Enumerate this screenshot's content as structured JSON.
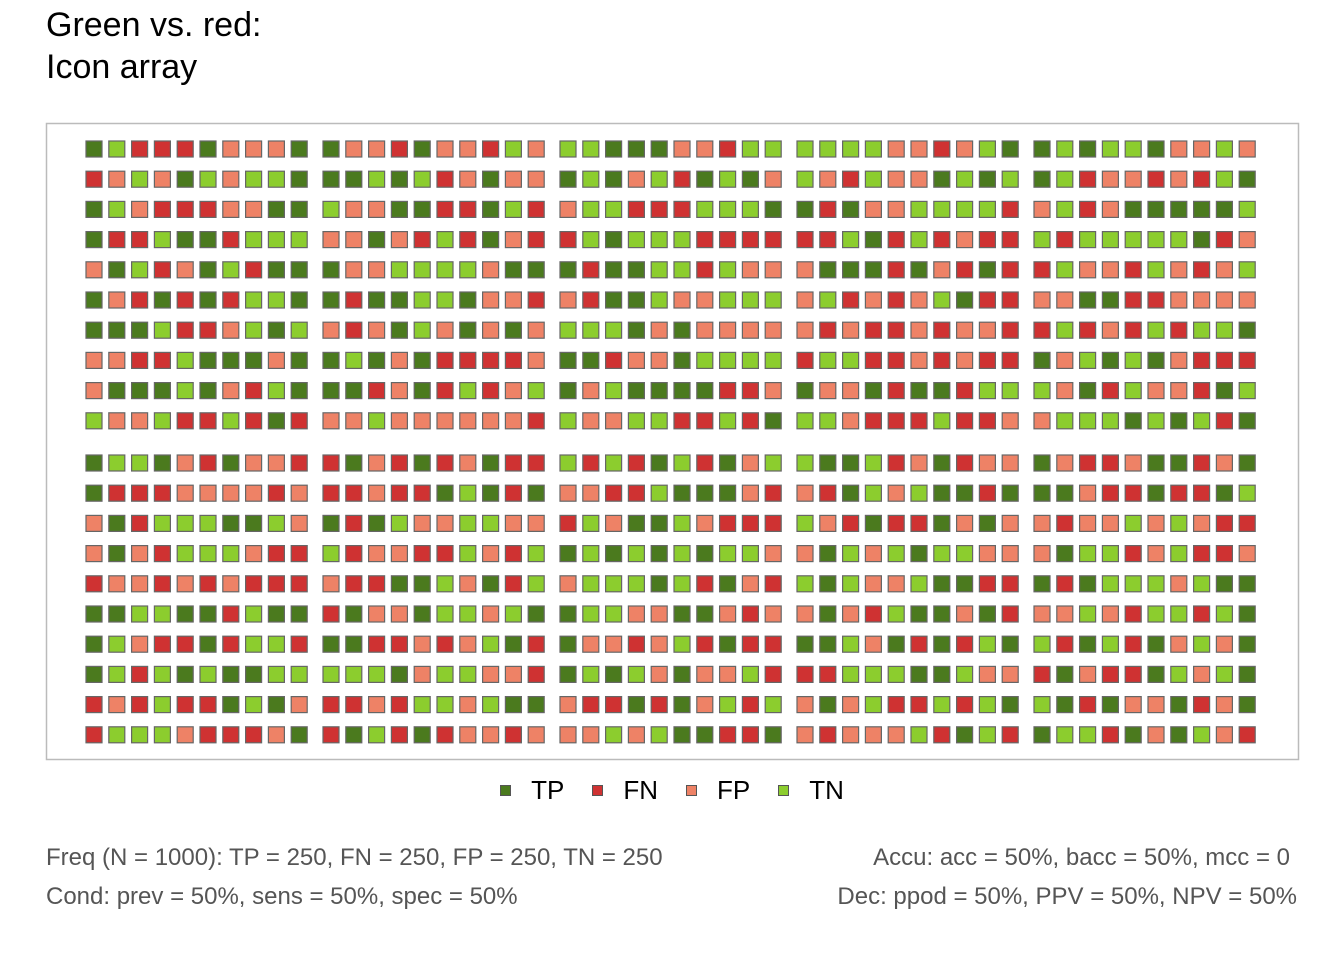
{
  "title": {
    "line1": "Green vs. red:",
    "line2": "Icon array"
  },
  "chart_data": {
    "type": "icon array",
    "population": 1000,
    "layout": {
      "icon_rows": 20,
      "icon_cols": 50,
      "block_rows": 2,
      "block_cols": 5
    },
    "legend": [
      "TP",
      "FN",
      "FP",
      "TN"
    ],
    "counts": {
      "TP": 250,
      "FN": 250,
      "FP": 250,
      "TN": 250
    },
    "colors": {
      "TP": "#4b7a1e",
      "FN": "#cf3232",
      "FP": "#ee8266",
      "TN": "#8ccd2e",
      "border": "#666666",
      "frame": "#bbbbbb"
    },
    "arrangement": "scattered (random)"
  },
  "summary": {
    "freq": "Freq (N = 1000):  TP = 250, FN = 250, FP = 250, TN = 250",
    "accu": "Accu:  acc = 50%, bacc = 50%, mcc = 0",
    "cond": "Cond:  prev = 50%, sens = 50%, spec = 50%",
    "dec": "Dec:  ppod = 50%, PPV = 50%, NPV = 50%"
  }
}
